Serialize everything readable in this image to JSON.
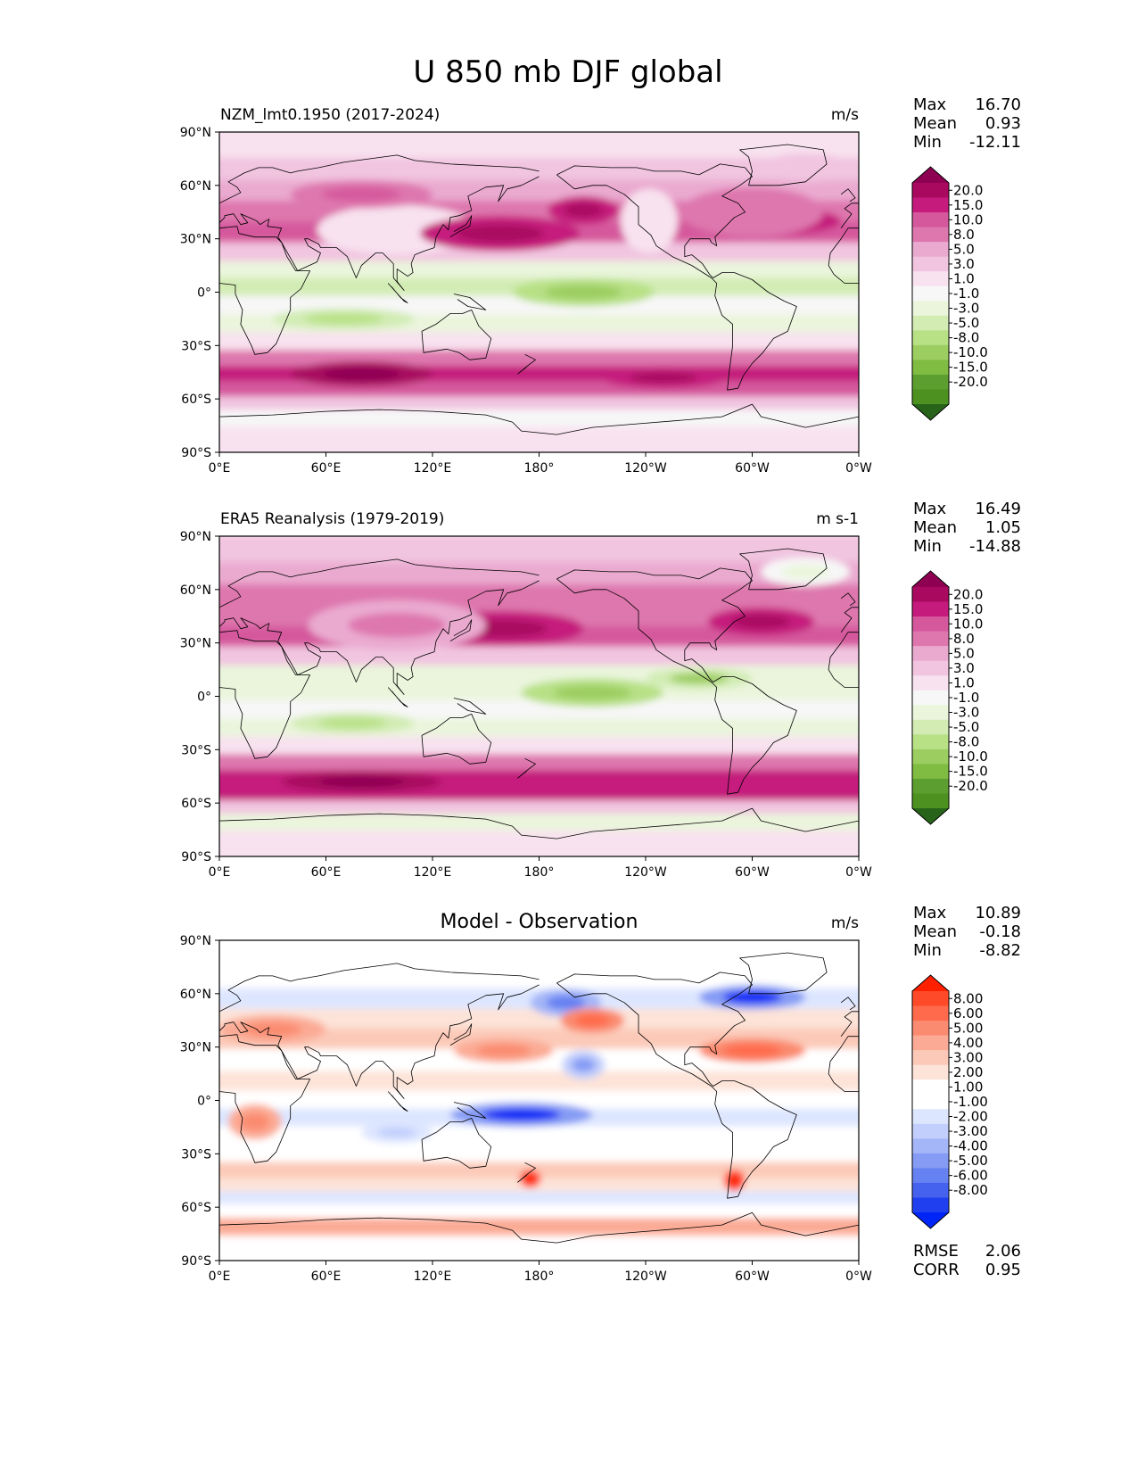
{
  "title": "U 850 mb DJF global",
  "chart_data": [
    {
      "type": "heatmap",
      "panel_id": "model",
      "title_left": "NZM_lmt0.1950 (2017-2024)",
      "title_center": "",
      "units": "m/s",
      "xticks": [
        "0°E",
        "60°E",
        "120°E",
        "180°",
        "120°W",
        "60°W",
        "0°W"
      ],
      "yticks": [
        "90°N",
        "60°N",
        "30°N",
        "0°",
        "30°S",
        "60°S",
        "90°S"
      ],
      "xlim": [
        0,
        360
      ],
      "ylim": [
        -90,
        90
      ],
      "stats": [
        {
          "label": "Max",
          "value": "16.70"
        },
        {
          "label": "Mean",
          "value": "0.93"
        },
        {
          "label": "Min",
          "value": "-12.11"
        }
      ],
      "colorbar_levels": [
        "20.0",
        "15.0",
        "10.0",
        "8.0",
        "5.0",
        "3.0",
        "1.0",
        "-1.0",
        "-3.0",
        "-5.0",
        "-8.0",
        "-10.0",
        "-15.0",
        "-20.0"
      ],
      "colorbar_colors": [
        "#8e0152",
        "#a90a60",
        "#c51b7d",
        "#d5589d",
        "#de77ae",
        "#eaaad0",
        "#f1c4e0",
        "#f8e2ef",
        "#f7f7f7",
        "#eaf5dc",
        "#d2ecb4",
        "#b8e186",
        "#9ccd60",
        "#7fbc41",
        "#5c9e30",
        "#4d9221",
        "#276419"
      ],
      "bands": [
        {
          "lat": 82,
          "u": 0
        },
        {
          "lat": 68,
          "u": 2.5
        },
        {
          "lat": 57,
          "u": 4
        },
        {
          "lat": 45,
          "u": 7
        },
        {
          "lat": 33,
          "u": 9
        },
        {
          "lat": 22,
          "u": 2
        },
        {
          "lat": 12,
          "u": -5
        },
        {
          "lat": 3,
          "u": -6
        },
        {
          "lat": -8,
          "u": -3
        },
        {
          "lat": -18,
          "u": -5
        },
        {
          "lat": -28,
          "u": -1
        },
        {
          "lat": -38,
          "u": 6
        },
        {
          "lat": -46,
          "u": 13
        },
        {
          "lat": -55,
          "u": 9
        },
        {
          "lat": -63,
          "u": 2
        },
        {
          "lat": -70,
          "u": -3
        },
        {
          "lat": -82,
          "u": 0
        }
      ],
      "features": [
        {
          "lon": 100,
          "lat": 35,
          "u": 0,
          "w": 45,
          "h": 14
        },
        {
          "lon": 242,
          "lat": 40,
          "u": 0,
          "w": 16,
          "h": 18
        },
        {
          "lon": 158,
          "lat": 33,
          "u": 12,
          "w": 45,
          "h": 10
        },
        {
          "lon": 205,
          "lat": 46,
          "u": 13,
          "w": 20,
          "h": 8
        },
        {
          "lon": 310,
          "lat": 40,
          "u": 11,
          "w": 40,
          "h": 8
        },
        {
          "lon": 205,
          "lat": 0,
          "u": -9,
          "w": 40,
          "h": 8
        },
        {
          "lon": 300,
          "lat": 45,
          "u": 5,
          "w": 40,
          "h": 14
        },
        {
          "lon": 330,
          "lat": 70,
          "u": 2,
          "w": 25,
          "h": 8
        },
        {
          "lon": 70,
          "lat": -15,
          "u": -6,
          "w": 40,
          "h": 6
        },
        {
          "lon": 80,
          "lat": -46,
          "u": 15,
          "w": 40,
          "h": 7
        },
        {
          "lon": 250,
          "lat": -48,
          "u": 14,
          "w": 35,
          "h": 6
        },
        {
          "lon": 80,
          "lat": 55,
          "u": 7,
          "w": 40,
          "h": 8
        }
      ]
    },
    {
      "type": "heatmap",
      "panel_id": "obs",
      "title_left": "ERA5 Reanalysis (1979-2019)",
      "title_center": "",
      "units": "m s-1",
      "xticks": [
        "0°E",
        "60°E",
        "120°E",
        "180°",
        "120°W",
        "60°W",
        "0°W"
      ],
      "yticks": [
        "90°N",
        "60°N",
        "30°N",
        "0°",
        "30°S",
        "60°S",
        "90°S"
      ],
      "xlim": [
        0,
        360
      ],
      "ylim": [
        -90,
        90
      ],
      "stats": [
        {
          "label": "Max",
          "value": "16.49"
        },
        {
          "label": "Mean",
          "value": "1.05"
        },
        {
          "label": "Min",
          "value": "-14.88"
        }
      ],
      "colorbar_levels": [
        "20.0",
        "15.0",
        "10.0",
        "8.0",
        "5.0",
        "3.0",
        "1.0",
        "-1.0",
        "-3.0",
        "-5.0",
        "-8.0",
        "-10.0",
        "-15.0",
        "-20.0"
      ],
      "colorbar_colors": [
        "#8e0152",
        "#a90a60",
        "#c51b7d",
        "#d5589d",
        "#de77ae",
        "#eaaad0",
        "#f1c4e0",
        "#f8e2ef",
        "#f7f7f7",
        "#eaf5dc",
        "#d2ecb4",
        "#b8e186",
        "#9ccd60",
        "#7fbc41",
        "#5c9e30",
        "#4d9221",
        "#276419"
      ],
      "bands": [
        {
          "lat": 82,
          "u": 1
        },
        {
          "lat": 68,
          "u": 3
        },
        {
          "lat": 57,
          "u": 5
        },
        {
          "lat": 45,
          "u": 7
        },
        {
          "lat": 33,
          "u": 8
        },
        {
          "lat": 22,
          "u": 1
        },
        {
          "lat": 12,
          "u": -5
        },
        {
          "lat": 3,
          "u": -5
        },
        {
          "lat": -8,
          "u": -2
        },
        {
          "lat": -18,
          "u": -4
        },
        {
          "lat": -28,
          "u": -1
        },
        {
          "lat": -38,
          "u": 5
        },
        {
          "lat": -46,
          "u": 12
        },
        {
          "lat": -55,
          "u": 10
        },
        {
          "lat": -63,
          "u": 1
        },
        {
          "lat": -70,
          "u": -5
        },
        {
          "lat": -82,
          "u": 0
        }
      ],
      "features": [
        {
          "lon": 160,
          "lat": 38,
          "u": 12,
          "w": 45,
          "h": 10
        },
        {
          "lon": 305,
          "lat": 42,
          "u": 13,
          "w": 30,
          "h": 8
        },
        {
          "lon": 210,
          "lat": 2,
          "u": -9,
          "w": 40,
          "h": 8
        },
        {
          "lon": 75,
          "lat": -15,
          "u": -7,
          "w": 35,
          "h": 6
        },
        {
          "lon": 80,
          "lat": -48,
          "u": 15,
          "w": 45,
          "h": 6
        },
        {
          "lon": 100,
          "lat": 40,
          "u": 4,
          "w": 50,
          "h": 14
        },
        {
          "lon": 330,
          "lat": 70,
          "u": -3,
          "w": 25,
          "h": 8
        },
        {
          "lon": 270,
          "lat": 10,
          "u": -8,
          "w": 30,
          "h": 6
        }
      ]
    },
    {
      "type": "heatmap",
      "panel_id": "diff",
      "title_left": "",
      "title_center": "Model - Observation",
      "units": "m/s",
      "xticks": [
        "0°E",
        "60°E",
        "120°E",
        "180°",
        "120°W",
        "60°W",
        "0°W"
      ],
      "yticks": [
        "90°N",
        "60°N",
        "30°N",
        "0°",
        "30°S",
        "60°S",
        "90°S"
      ],
      "xlim": [
        0,
        360
      ],
      "ylim": [
        -90,
        90
      ],
      "stats": [
        {
          "label": "Max",
          "value": "10.89"
        },
        {
          "label": "Mean",
          "value": "-0.18"
        },
        {
          "label": "Min",
          "value": "-8.82"
        }
      ],
      "extra_stats": [
        {
          "label": "RMSE",
          "value": "2.06"
        },
        {
          "label": "CORR",
          "value": "0.95"
        }
      ],
      "colorbar_levels": [
        "8.00",
        "6.00",
        "5.00",
        "4.00",
        "3.00",
        "2.00",
        "1.00",
        "-1.00",
        "-2.00",
        "-3.00",
        "-4.00",
        "-5.00",
        "-6.00",
        "-8.00"
      ],
      "colorbar_colors": [
        "#ff2000",
        "#ff4a2a",
        "#ff6a4c",
        "#fa8b70",
        "#fbab95",
        "#fcc9b8",
        "#fde3d8",
        "#ffffff",
        "#ffffff",
        "#dde6ff",
        "#c2cffc",
        "#a4b6f8",
        "#869cf4",
        "#6681f1",
        "#4562ee",
        "#2040f0",
        "#0025f7"
      ],
      "bands": [
        {
          "lat": 82,
          "u": 0
        },
        {
          "lat": 68,
          "u": -2
        },
        {
          "lat": 57,
          "u": -3
        },
        {
          "lat": 45,
          "u": 1
        },
        {
          "lat": 35,
          "u": 2
        },
        {
          "lat": 22,
          "u": 0
        },
        {
          "lat": 10,
          "u": 1
        },
        {
          "lat": 0,
          "u": -1
        },
        {
          "lat": -10,
          "u": -2.5
        },
        {
          "lat": -20,
          "u": -1.5
        },
        {
          "lat": -30,
          "u": 0.5
        },
        {
          "lat": -40,
          "u": 2.5
        },
        {
          "lat": -48,
          "u": 1.5
        },
        {
          "lat": -55,
          "u": -3
        },
        {
          "lat": -62,
          "u": -1
        },
        {
          "lat": -71,
          "u": 3
        },
        {
          "lat": -82,
          "u": 0
        }
      ],
      "features": [
        {
          "lon": 170,
          "lat": -8,
          "u": -6,
          "w": 40,
          "h": 7
        },
        {
          "lon": 205,
          "lat": 20,
          "u": -4,
          "w": 12,
          "h": 8
        },
        {
          "lon": 195,
          "lat": 55,
          "u": -5,
          "w": 20,
          "h": 8
        },
        {
          "lon": 300,
          "lat": 58,
          "u": -6,
          "w": 30,
          "h": 7
        },
        {
          "lon": 210,
          "lat": 45,
          "u": 4,
          "w": 18,
          "h": 7
        },
        {
          "lon": 300,
          "lat": 28,
          "u": 4,
          "w": 30,
          "h": 7
        },
        {
          "lon": 160,
          "lat": 28,
          "u": 3,
          "w": 28,
          "h": 7
        },
        {
          "lon": 20,
          "lat": -12,
          "u": 3,
          "w": 15,
          "h": 10
        },
        {
          "lon": 290,
          "lat": -45,
          "u": 7,
          "w": 6,
          "h": 6
        },
        {
          "lon": 175,
          "lat": -44,
          "u": 6,
          "w": 6,
          "h": 5
        },
        {
          "lon": 30,
          "lat": 40,
          "u": 3,
          "w": 30,
          "h": 8
        },
        {
          "lon": 100,
          "lat": -18,
          "u": -2.5,
          "w": 20,
          "h": 6
        }
      ]
    }
  ]
}
